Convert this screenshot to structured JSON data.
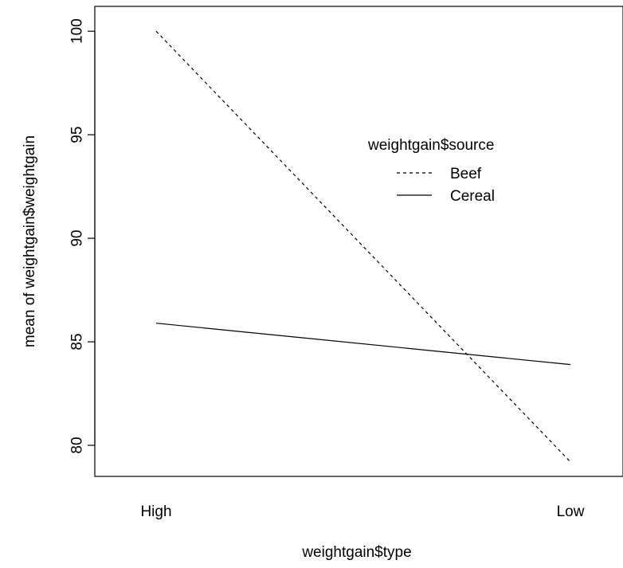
{
  "chart_data": {
    "type": "line",
    "title": "",
    "xlabel": "weightgain$type",
    "ylabel": "mean of  weightgain$weightgain",
    "categories": [
      "High",
      "Low"
    ],
    "ylim": [
      78.5,
      101.2
    ],
    "yticks": [
      80,
      85,
      90,
      95,
      100
    ],
    "ytick_labels": [
      "80",
      "85",
      "90",
      "95",
      "100"
    ],
    "grid": false,
    "legend": {
      "title": "weightgain$source",
      "placement": "right-center"
    },
    "series": [
      {
        "name": "Beef",
        "values": [
          100.0,
          79.2
        ],
        "line_style": "dashed",
        "color": "#000000"
      },
      {
        "name": "Cereal",
        "values": [
          85.9,
          83.9
        ],
        "line_style": "solid",
        "color": "#000000"
      }
    ]
  }
}
